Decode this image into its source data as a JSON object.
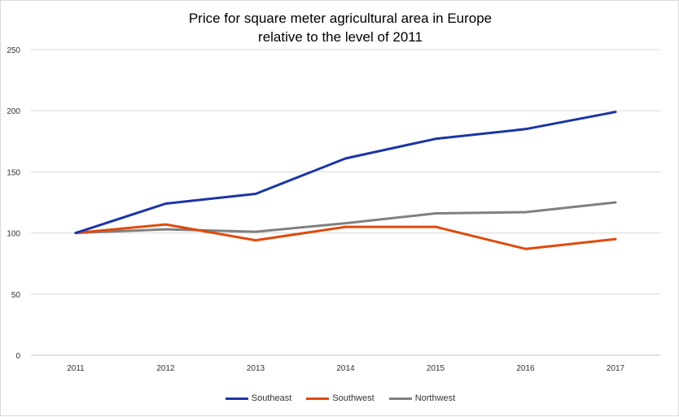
{
  "chart_data": {
    "type": "line",
    "title_line1": "Price for square meter agricultural area in Europe",
    "title_line2": "relative to the level of 2011",
    "xlabel": "",
    "ylabel": "",
    "categories": [
      "2011",
      "2012",
      "2013",
      "2014",
      "2015",
      "2016",
      "2017"
    ],
    "ylim": [
      0,
      250
    ],
    "yticks": [
      0,
      50,
      100,
      150,
      200,
      250
    ],
    "grid": true,
    "legend_position": "bottom",
    "series": [
      {
        "name": "Southeast",
        "color": "#1b35a5",
        "values": [
          100,
          124,
          132,
          161,
          177,
          185,
          199
        ]
      },
      {
        "name": "Southwest",
        "color": "#e04a0c",
        "values": [
          100,
          107,
          94,
          105,
          105,
          87,
          95
        ]
      },
      {
        "name": "Northwest",
        "color": "#808080",
        "values": [
          100,
          103,
          101,
          108,
          116,
          117,
          125
        ]
      }
    ]
  }
}
